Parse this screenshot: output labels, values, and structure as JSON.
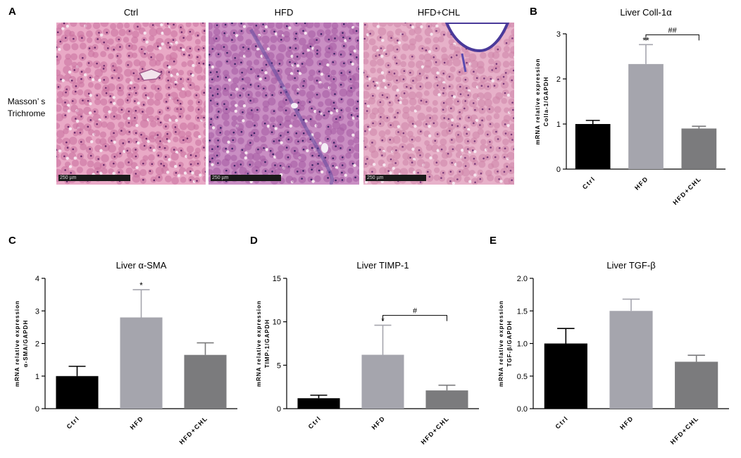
{
  "panel_letters": {
    "A": "A",
    "B": "B",
    "C": "C",
    "D": "D",
    "E": "E"
  },
  "histology": {
    "row_label": [
      "Masson’ s",
      "Trichrome"
    ],
    "images": [
      {
        "caption": "Ctrl",
        "scale": "250 µm",
        "base": "#e9a9c6",
        "cell": "#c8709f",
        "nuclei": "#6a2a6b"
      },
      {
        "caption": "HFD",
        "scale": "250 µm",
        "base": "#c98ec3",
        "cell": "#a45aa3",
        "nuclei": "#3c2466"
      },
      {
        "caption": "HFD+CHL",
        "scale": "250 µm",
        "base": "#e7b1c9",
        "cell": "#cd84a8",
        "nuclei": "#7a3a7a"
      }
    ]
  },
  "colors": {
    "ctrl": "#000000",
    "hfd": "#a5a5ad",
    "chl": "#7b7b7d"
  },
  "chart_data": [
    {
      "id": "B",
      "type": "bar",
      "title": "Liver Coll-1α",
      "ylabel": [
        "mRNA relative expression",
        "Colla-1/GAPDH"
      ],
      "categories": [
        "Ctrl",
        "HFD",
        "HFD+CHL"
      ],
      "values": [
        1.0,
        2.33,
        0.9
      ],
      "errors": [
        0.08,
        0.43,
        0.05
      ],
      "ylim": [
        0,
        3
      ],
      "yticks": [
        "0",
        "1",
        "2",
        "3"
      ],
      "marks": [
        "",
        "**",
        ""
      ],
      "bracket": {
        "from": 1,
        "to": 2,
        "label": "##"
      }
    },
    {
      "id": "C",
      "type": "bar",
      "title": "Liver α-SMA",
      "ylabel": [
        "mRNA relative expression",
        "α-SMA/GAPDH"
      ],
      "categories": [
        "Ctrl",
        "HFD",
        "HFD+CHL"
      ],
      "values": [
        1.0,
        2.8,
        1.65
      ],
      "errors": [
        0.3,
        0.85,
        0.37
      ],
      "ylim": [
        0,
        4
      ],
      "yticks": [
        "0",
        "1",
        "2",
        "3",
        "4"
      ],
      "marks": [
        "",
        "*",
        ""
      ],
      "bracket": null
    },
    {
      "id": "D",
      "type": "bar",
      "title": "Liver TIMP-1",
      "ylabel": [
        "mRNA relative expression",
        "TIMP-1/GAPDH"
      ],
      "categories": [
        "Ctrl",
        "HFD",
        "HFD+CHL"
      ],
      "values": [
        1.2,
        6.2,
        2.1
      ],
      "errors": [
        0.35,
        3.4,
        0.6
      ],
      "ylim": [
        0,
        15
      ],
      "yticks": [
        "0",
        "5",
        "10",
        "15"
      ],
      "marks": [
        "",
        "*",
        ""
      ],
      "bracket": {
        "from": 1,
        "to": 2,
        "label": "#"
      }
    },
    {
      "id": "E",
      "type": "bar",
      "title": "Liver TGF-β",
      "ylabel": [
        "mRNA relative expression",
        "TGF-β/GAPDH"
      ],
      "categories": [
        "Ctrl",
        "HFD",
        "HFD+CHL"
      ],
      "values": [
        1.0,
        1.5,
        0.72
      ],
      "errors": [
        0.23,
        0.18,
        0.1
      ],
      "ylim": [
        0,
        2
      ],
      "yticks": [
        "0.0",
        "0.5",
        "1.0",
        "1.5",
        "2.0"
      ],
      "marks": [
        "",
        "",
        ""
      ],
      "bracket": null
    }
  ]
}
